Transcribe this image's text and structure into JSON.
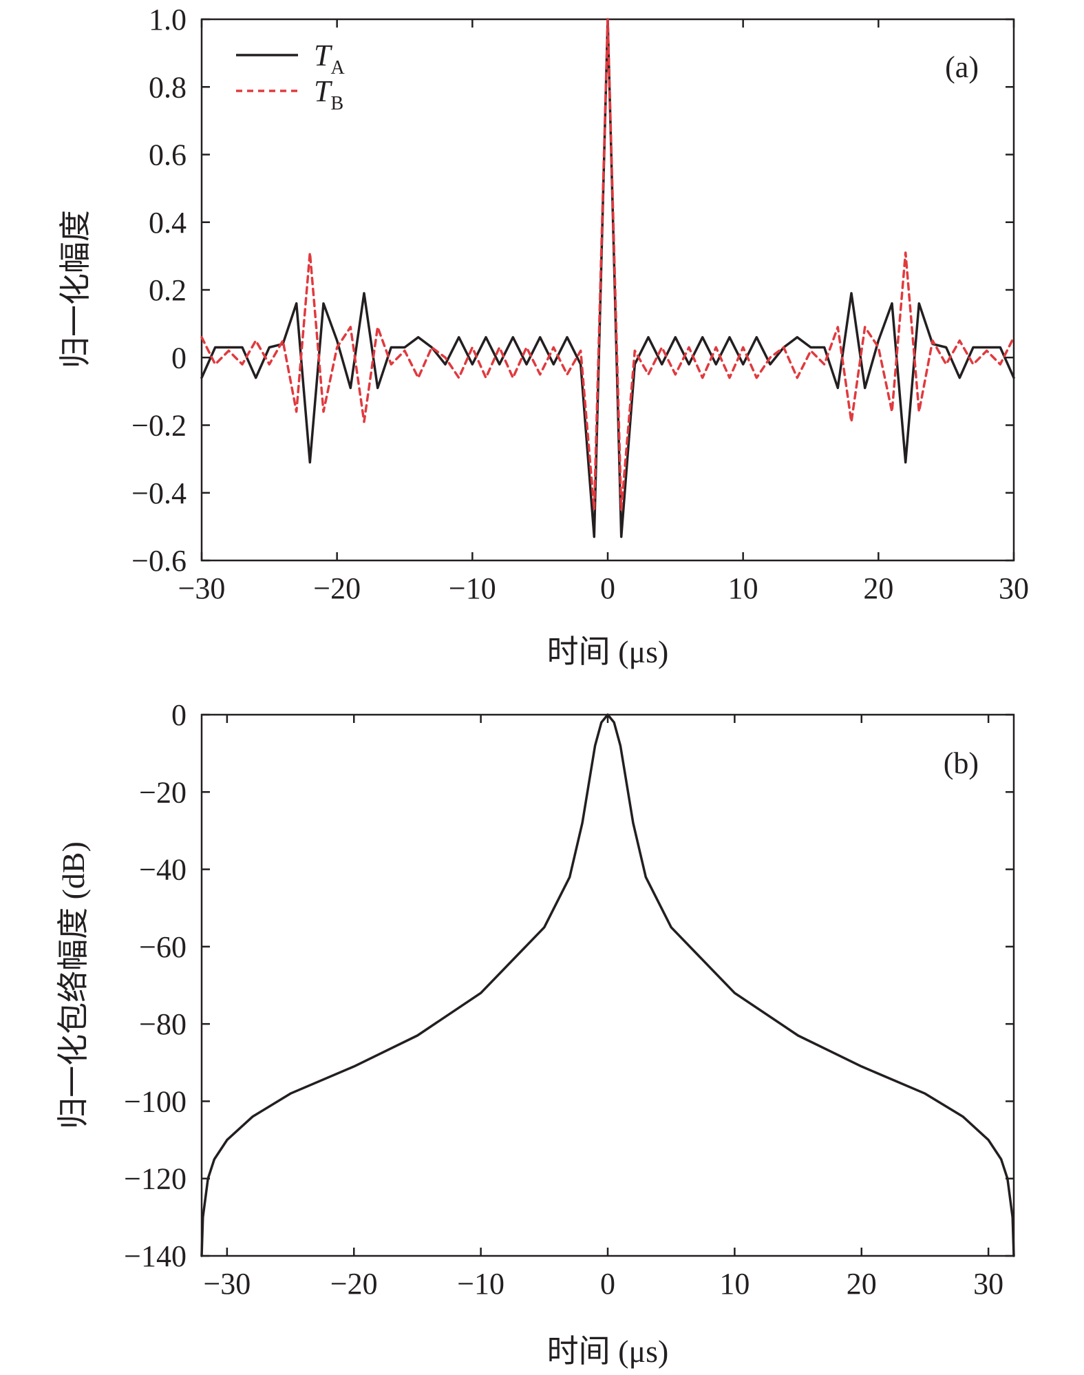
{
  "chart_data": [
    {
      "type": "line",
      "panel_label": "(a)",
      "xlabel": "时间 (μs)",
      "ylabel": "归一化幅度",
      "xlim": [
        -30,
        30
      ],
      "ylim": [
        -0.6,
        1.0
      ],
      "xticks": [
        -30,
        -20,
        -10,
        0,
        10,
        20,
        30
      ],
      "xtick_labels": [
        "−30",
        "−20",
        "−10",
        "0",
        "10",
        "20",
        "30"
      ],
      "yticks": [
        1.0,
        0.8,
        0.6,
        0.4,
        0.2,
        0,
        -0.2,
        -0.4,
        -0.6
      ],
      "ytick_labels": [
        "1.0",
        "0.8",
        "0.6",
        "0.4",
        "0.2",
        "0",
        "−0.2",
        "−0.4",
        "−0.6"
      ],
      "grid": false,
      "legend_position": "top-left",
      "series": [
        {
          "name": "T",
          "subscript": "A",
          "color": "#231f20",
          "style": "solid",
          "x": [
            -30,
            -29,
            -28,
            -27,
            -26,
            -25,
            -24,
            -23,
            -22,
            -21,
            -20,
            -19,
            -18,
            -17,
            -16,
            -15,
            -14,
            -13,
            -12,
            -11,
            -10,
            -9,
            -8,
            -7,
            -6,
            -5,
            -4,
            -3,
            -2,
            -1,
            0,
            1,
            2,
            3,
            4,
            5,
            6,
            7,
            8,
            9,
            10,
            11,
            12,
            13,
            14,
            15,
            16,
            17,
            18,
            19,
            20,
            21,
            22,
            23,
            24,
            25,
            26,
            27,
            28,
            29,
            30
          ],
          "y": [
            -0.06,
            0.03,
            0.03,
            0.03,
            -0.06,
            0.03,
            0.04,
            0.16,
            -0.31,
            0.16,
            0.05,
            -0.09,
            0.19,
            -0.09,
            0.03,
            0.03,
            0.06,
            0.03,
            -0.02,
            0.06,
            -0.02,
            0.06,
            -0.02,
            0.06,
            -0.02,
            0.06,
            -0.02,
            0.06,
            -0.02,
            -0.53,
            1.0,
            -0.53,
            -0.02,
            0.06,
            -0.02,
            0.06,
            -0.02,
            0.06,
            -0.02,
            0.06,
            -0.02,
            0.06,
            -0.02,
            0.03,
            0.06,
            0.03,
            0.03,
            -0.09,
            0.19,
            -0.09,
            0.05,
            0.16,
            -0.31,
            0.16,
            0.04,
            0.03,
            -0.06,
            0.03,
            0.03,
            0.03,
            -0.06
          ]
        },
        {
          "name": "T",
          "subscript": "B",
          "color": "#e03a3e",
          "style": "dashed",
          "x": [
            -30,
            -29,
            -28,
            -27,
            -26,
            -25,
            -24,
            -23,
            -22,
            -21,
            -20,
            -19,
            -18,
            -17,
            -16,
            -15,
            -14,
            -13,
            -12,
            -11,
            -10,
            -9,
            -8,
            -7,
            -6,
            -5,
            -4,
            -3,
            -2,
            -1,
            0,
            1,
            2,
            3,
            4,
            5,
            6,
            7,
            8,
            9,
            10,
            11,
            12,
            13,
            14,
            15,
            16,
            17,
            18,
            19,
            20,
            21,
            22,
            23,
            24,
            25,
            26,
            27,
            28,
            29,
            30
          ],
          "y": [
            0.06,
            -0.02,
            0.02,
            -0.02,
            0.05,
            -0.02,
            0.05,
            -0.16,
            0.31,
            -0.16,
            0.03,
            0.09,
            -0.19,
            0.09,
            -0.02,
            0.02,
            -0.06,
            0.03,
            0.0,
            -0.06,
            0.03,
            -0.06,
            0.03,
            -0.06,
            0.03,
            -0.05,
            0.03,
            -0.05,
            0.02,
            -0.45,
            1.0,
            -0.45,
            0.02,
            -0.05,
            0.03,
            -0.05,
            0.03,
            -0.06,
            0.03,
            -0.06,
            0.03,
            -0.06,
            0.0,
            0.03,
            -0.06,
            0.02,
            -0.02,
            0.09,
            -0.19,
            0.09,
            0.03,
            -0.16,
            0.31,
            -0.16,
            0.05,
            -0.02,
            0.05,
            -0.02,
            0.02,
            -0.02,
            0.06
          ]
        }
      ]
    },
    {
      "type": "line",
      "panel_label": "(b)",
      "xlabel": "时间 (μs)",
      "ylabel": "归一化包络幅度 (dB)",
      "xlim": [
        -32,
        32
      ],
      "ylim": [
        -140,
        0
      ],
      "xticks": [
        -30,
        -20,
        -10,
        0,
        10,
        20,
        30
      ],
      "xtick_labels": [
        "−30",
        "−20",
        "−10",
        "0",
        "10",
        "20",
        "30"
      ],
      "yticks": [
        0,
        -20,
        -40,
        -60,
        -80,
        -100,
        -120,
        -140
      ],
      "ytick_labels": [
        "0",
        "−20",
        "−40",
        "−60",
        "−80",
        "−100",
        "−120",
        "−140"
      ],
      "grid": false,
      "series": [
        {
          "color": "#231f20",
          "style": "solid",
          "x": [
            -32,
            -31.9,
            -31.5,
            -31,
            -30,
            -28,
            -25,
            -20,
            -15,
            -10,
            -5,
            -3,
            -2,
            -1,
            -0.5,
            0,
            0.5,
            1,
            2,
            3,
            5,
            10,
            15,
            20,
            25,
            28,
            30,
            31,
            31.5,
            31.9,
            32
          ],
          "y": [
            -140,
            -130,
            -120,
            -115,
            -110,
            -104,
            -98,
            -91,
            -83,
            -72,
            -55,
            -42,
            -28,
            -8,
            -2,
            0,
            -2,
            -8,
            -28,
            -42,
            -55,
            -72,
            -83,
            -91,
            -98,
            -104,
            -110,
            -115,
            -120,
            -130,
            -140
          ]
        }
      ]
    }
  ]
}
